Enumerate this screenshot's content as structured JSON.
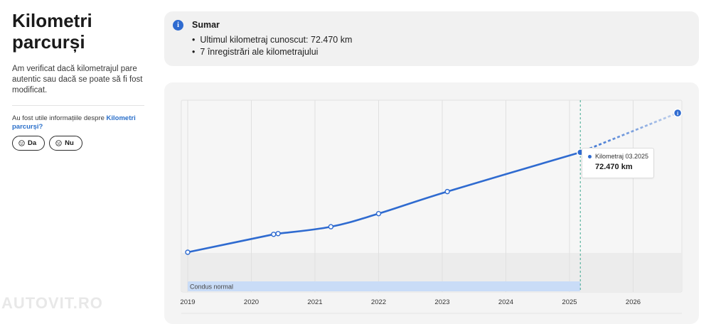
{
  "left": {
    "title_line1": "Kilometri",
    "title_line2": "parcurși",
    "description": "Am verificat dacă kilometrajul pare autentic sau dacă se poate să fi fost modificat.",
    "question_prefix": "Au fost utile informațiile despre ",
    "question_link": "Kilometri parcurși",
    "question_suffix": "?",
    "yes_label": "Da",
    "no_label": "Nu"
  },
  "summary": {
    "icon": "info-icon",
    "title": "Sumar",
    "items": [
      "Ultimul kilometraj cunoscut: 72.470 km",
      "7 înregistrări ale kilometrajului"
    ]
  },
  "chart_data": {
    "type": "line",
    "x_ticks": [
      "2019",
      "2020",
      "2021",
      "2022",
      "2023",
      "2024",
      "2025",
      "2026"
    ],
    "series": [
      {
        "points": [
          {
            "date": "2019.0",
            "km": 0
          },
          {
            "date": "2020.35",
            "km": 13000
          },
          {
            "date": "2020.42",
            "km": 13500
          },
          {
            "date": "2021.25",
            "km": 18500
          },
          {
            "date": "2022.0",
            "km": 28000
          },
          {
            "date": "2023.08",
            "km": 44000
          },
          {
            "date": "2025.17",
            "km": 72470
          }
        ]
      }
    ],
    "projection": {
      "date": "2026.7",
      "km": 101000
    },
    "band_label": "Condus normal",
    "tooltip": {
      "label": "Kilometraj 03.2025",
      "value": "72.470 km"
    },
    "colors": {
      "line": "#2f6bd0",
      "band": "#c9dcf7",
      "accent": "#3ea88f"
    }
  },
  "watermark": "AUTOVIT.RO"
}
